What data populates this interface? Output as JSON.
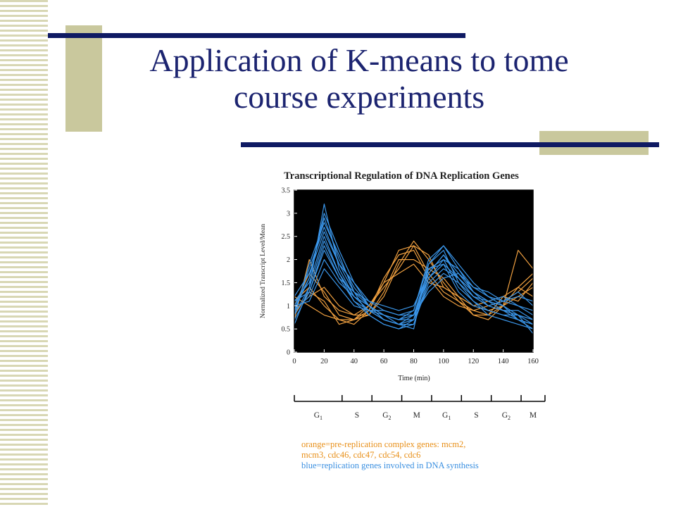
{
  "slide": {
    "title_line1": "Application of K-means to tome",
    "title_line2": "course experiments"
  },
  "chart_data": {
    "type": "line",
    "title": "Transcriptional Regulation of DNA Replication Genes",
    "xlabel": "Time (min)",
    "ylabel": "Normalized Transcript Level/Mean",
    "xlim": [
      0,
      160
    ],
    "ylim": [
      0,
      3.5
    ],
    "x_ticks": [
      "0",
      "20",
      "40",
      "60",
      "80",
      "100",
      "120",
      "140",
      "160"
    ],
    "y_ticks": [
      "0",
      "0.5",
      "1",
      "1.5",
      "2",
      "2.5",
      "3",
      "3.5"
    ],
    "background": "#000000",
    "x": [
      0,
      10,
      20,
      30,
      40,
      50,
      60,
      70,
      80,
      90,
      100,
      110,
      120,
      130,
      140,
      150,
      160
    ],
    "colors": {
      "orange": "#f0a040",
      "blue": "#3a95e8"
    },
    "series": [
      {
        "group": "orange",
        "values": [
          1.0,
          1.7,
          1.3,
          0.8,
          0.7,
          0.9,
          1.5,
          2.2,
          2.3,
          1.7,
          1.3,
          1.1,
          0.9,
          0.8,
          1.0,
          1.2,
          1.4
        ]
      },
      {
        "group": "orange",
        "values": [
          0.9,
          1.2,
          1.4,
          1.0,
          0.8,
          0.8,
          1.2,
          1.9,
          2.4,
          2.0,
          1.5,
          1.1,
          0.8,
          0.7,
          1.0,
          1.4,
          1.7
        ]
      },
      {
        "group": "orange",
        "values": [
          1.1,
          1.4,
          1.0,
          0.7,
          0.6,
          0.9,
          1.6,
          2.1,
          2.2,
          1.6,
          1.2,
          1.0,
          0.9,
          1.0,
          1.1,
          1.3,
          1.6
        ]
      },
      {
        "group": "orange",
        "values": [
          0.7,
          2.0,
          1.2,
          0.9,
          0.8,
          1.0,
          1.4,
          1.8,
          2.3,
          2.1,
          1.4,
          1.2,
          1.0,
          0.9,
          1.0,
          2.2,
          1.8
        ]
      },
      {
        "group": "orange",
        "values": [
          1.2,
          1.0,
          0.8,
          0.7,
          0.7,
          0.8,
          1.3,
          2.0,
          2.0,
          1.8,
          1.6,
          1.2,
          0.8,
          0.8,
          1.2,
          1.1,
          1.5
        ]
      },
      {
        "group": "orange",
        "values": [
          0.8,
          1.3,
          1.1,
          0.6,
          0.7,
          1.0,
          1.5,
          1.7,
          1.9,
          1.5,
          1.4,
          1.2,
          1.0,
          1.1,
          1.2,
          1.4,
          1.2
        ]
      },
      {
        "group": "blue",
        "values": [
          0.8,
          1.4,
          3.2,
          1.8,
          1.2,
          0.9,
          0.8,
          0.7,
          0.8,
          1.8,
          1.9,
          1.6,
          1.2,
          1.0,
          0.9,
          0.8,
          0.7
        ]
      },
      {
        "group": "blue",
        "values": [
          1.0,
          1.6,
          2.9,
          2.0,
          1.4,
          1.0,
          0.7,
          0.6,
          0.7,
          1.7,
          2.1,
          1.7,
          1.3,
          1.1,
          1.0,
          0.8,
          0.6
        ]
      },
      {
        "group": "blue",
        "values": [
          0.9,
          1.8,
          2.7,
          1.9,
          1.3,
          1.0,
          0.8,
          0.7,
          0.9,
          1.9,
          2.2,
          1.5,
          1.1,
          0.9,
          0.8,
          0.7,
          0.5
        ]
      },
      {
        "group": "blue",
        "values": [
          1.1,
          1.5,
          2.5,
          1.7,
          1.2,
          0.9,
          0.7,
          0.6,
          0.8,
          1.6,
          2.0,
          1.8,
          1.4,
          1.2,
          1.1,
          1.0,
          0.8
        ]
      },
      {
        "group": "blue",
        "values": [
          0.7,
          1.3,
          2.3,
          1.6,
          1.1,
          0.8,
          0.6,
          0.5,
          0.6,
          1.5,
          1.8,
          1.6,
          1.3,
          1.0,
          0.9,
          0.9,
          0.7
        ]
      },
      {
        "group": "blue",
        "values": [
          1.2,
          1.7,
          2.6,
          1.9,
          1.5,
          1.1,
          0.9,
          0.8,
          0.9,
          2.0,
          2.3,
          1.9,
          1.5,
          1.2,
          1.0,
          0.7,
          0.6
        ]
      },
      {
        "group": "blue",
        "values": [
          0.9,
          1.2,
          2.0,
          1.5,
          1.2,
          1.0,
          0.8,
          0.7,
          0.7,
          1.4,
          1.7,
          1.5,
          1.2,
          1.1,
          1.2,
          1.0,
          0.9
        ]
      },
      {
        "group": "blue",
        "values": [
          0.8,
          1.9,
          2.8,
          2.1,
          1.3,
          0.8,
          0.6,
          0.5,
          0.7,
          1.8,
          2.0,
          1.4,
          1.1,
          0.8,
          0.7,
          0.6,
          0.5
        ]
      },
      {
        "group": "blue",
        "values": [
          1.0,
          1.1,
          1.8,
          1.4,
          1.0,
          0.9,
          0.9,
          0.8,
          0.8,
          1.3,
          1.6,
          1.7,
          1.4,
          1.3,
          1.1,
          1.2,
          1.1
        ]
      },
      {
        "group": "blue",
        "values": [
          0.6,
          1.4,
          2.4,
          1.7,
          1.1,
          0.9,
          0.7,
          0.6,
          0.6,
          1.6,
          1.9,
          1.3,
          1.0,
          0.9,
          0.8,
          0.8,
          0.4
        ]
      },
      {
        "group": "blue",
        "values": [
          1.1,
          1.3,
          2.2,
          1.6,
          1.3,
          1.1,
          1.0,
          0.9,
          1.0,
          1.7,
          2.1,
          1.6,
          1.2,
          1.0,
          1.1,
          1.3,
          1.0
        ]
      },
      {
        "group": "blue",
        "values": [
          0.9,
          1.6,
          3.0,
          2.2,
          1.5,
          1.0,
          0.8,
          0.6,
          0.5,
          1.9,
          2.3,
          1.8,
          1.3,
          1.1,
          0.9,
          0.7,
          0.6
        ]
      }
    ],
    "phases": [
      {
        "label": "G",
        "sub": "1",
        "start": 0,
        "end": 32
      },
      {
        "label": "S",
        "sub": "",
        "start": 32,
        "end": 52
      },
      {
        "label": "G",
        "sub": "2",
        "start": 52,
        "end": 72
      },
      {
        "label": "M",
        "sub": "",
        "start": 72,
        "end": 92
      },
      {
        "label": "G",
        "sub": "1",
        "start": 92,
        "end": 112
      },
      {
        "label": "S",
        "sub": "",
        "start": 112,
        "end": 132
      },
      {
        "label": "G",
        "sub": "2",
        "start": 132,
        "end": 152
      },
      {
        "label": "M",
        "sub": "",
        "start": 152,
        "end": 168
      }
    ],
    "legend": {
      "orange_line1": "orange=pre-replication complex genes: mcm2,",
      "orange_line2": "mcm3, cdc46, cdc47, cdc54, cdc6",
      "blue_line1": "blue=replication genes involved in DNA synthesis"
    }
  }
}
